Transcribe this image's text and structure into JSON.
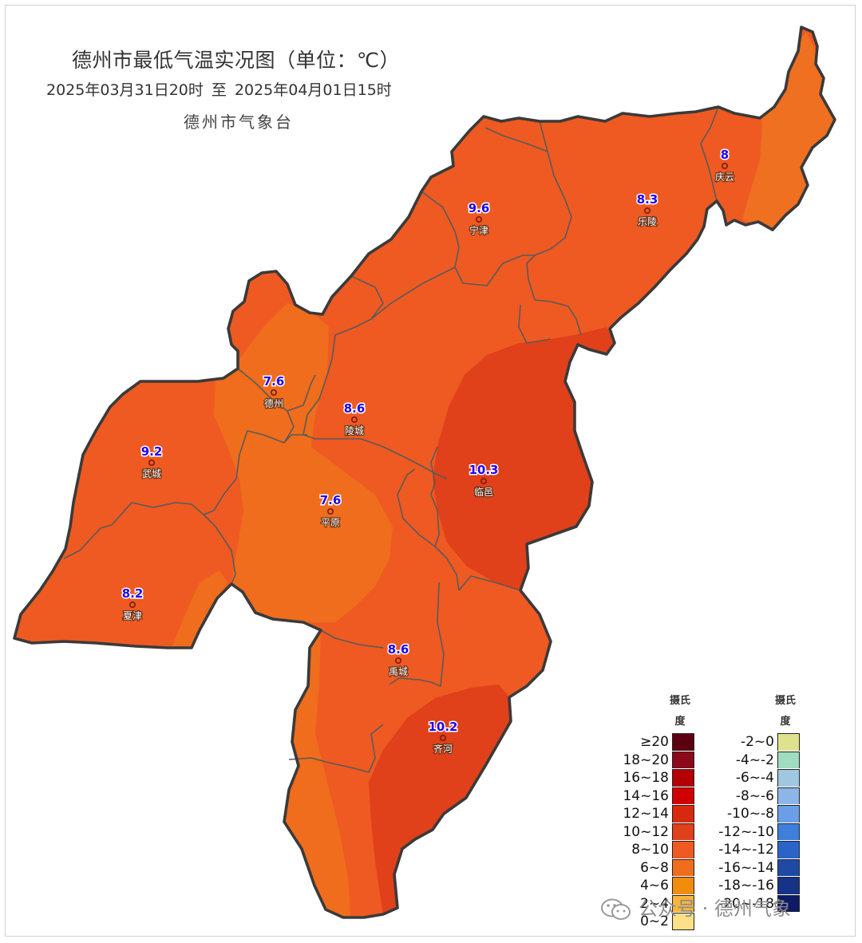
{
  "title": "德州市最低气温实况图（单位：℃）",
  "time_range": {
    "start": "2025年03月31日20时",
    "separator": "至",
    "end": "2025年04月01日15时"
  },
  "issuer": "德州市气象台",
  "stations": [
    {
      "name": "庆云",
      "value": "8"
    },
    {
      "name": "乐陵",
      "value": "8.3"
    },
    {
      "name": "宁津",
      "value": "9.6"
    },
    {
      "name": "德州",
      "value": "7.6"
    },
    {
      "name": "陵城",
      "value": "8.6"
    },
    {
      "name": "武城",
      "value": "9.2"
    },
    {
      "name": "临邑",
      "value": "10.3"
    },
    {
      "name": "平原",
      "value": "7.6"
    },
    {
      "name": "夏津",
      "value": "8.2"
    },
    {
      "name": "禹城",
      "value": "8.6"
    },
    {
      "name": "齐河",
      "value": "10.2"
    }
  ],
  "legend": {
    "unit_label_top": "摄氏",
    "unit_label_bottom": "度",
    "warm": [
      {
        "label": "≥20",
        "color": "#5c0011"
      },
      {
        "label": "18~20",
        "color": "#8b0a1a"
      },
      {
        "label": "16~18",
        "color": "#b30000"
      },
      {
        "label": "14~16",
        "color": "#d10000"
      },
      {
        "label": "12~14",
        "color": "#d8290f"
      },
      {
        "label": "10~12",
        "color": "#e0401a"
      },
      {
        "label": "8~10",
        "color": "#ee5a22"
      },
      {
        "label": "6~8",
        "color": "#ef6d1c"
      },
      {
        "label": "4~6",
        "color": "#f08c0e"
      },
      {
        "label": "2~4",
        "color": "#f7b63a"
      },
      {
        "label": "0~2",
        "color": "#fde088"
      }
    ],
    "cold": [
      {
        "label": "-2~0",
        "color": "#dfe28c"
      },
      {
        "label": "-4~-2",
        "color": "#9fdcc0"
      },
      {
        "label": "-6~-4",
        "color": "#9fc8e0"
      },
      {
        "label": "-8~-6",
        "color": "#8cb5e8"
      },
      {
        "label": "-10~-8",
        "color": "#6a9fe8"
      },
      {
        "label": "-12~-10",
        "color": "#3f7fdc"
      },
      {
        "label": "-14~-12",
        "color": "#2b64c9"
      },
      {
        "label": "-16~-14",
        "color": "#1e4aa6"
      },
      {
        "label": "-18~-16",
        "color": "#173388"
      },
      {
        "label": "-20~-18",
        "color": "#0e1a66"
      }
    ]
  },
  "watermark": "公众号 · 德州气象",
  "icons": {
    "watermark_icon": "wechat-icon",
    "station_marker": "station-dot-icon"
  }
}
